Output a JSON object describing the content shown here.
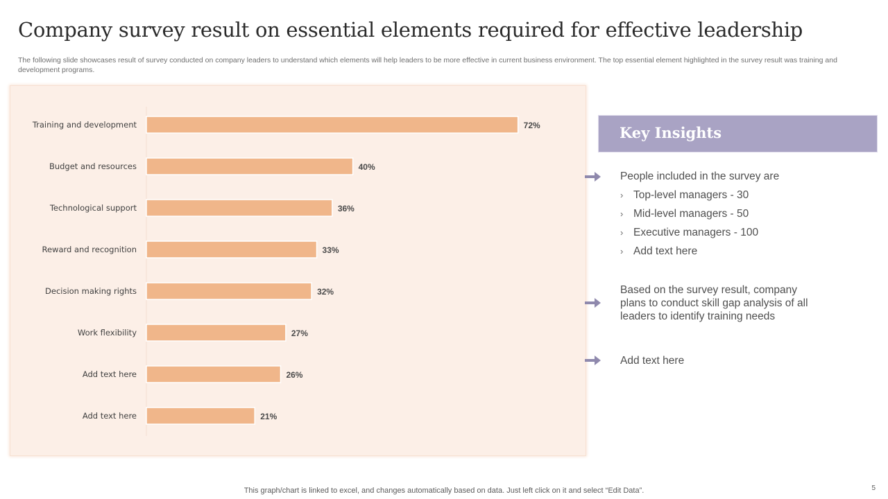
{
  "slide": {
    "title": "Company survey result on essential elements required for effective leadership",
    "subtitle": "The following slide showcases result of survey conducted on company leaders to understand which elements will help leaders to be more effective in current business environment. The top essential element highlighted in the survey result was training and development programs.",
    "footer_note": "This graph/chart is linked to excel,  and changes automatically based on data. Just left click on it and select “Edit Data”.",
    "page_number": "5"
  },
  "chart_data": {
    "type": "bar",
    "orientation": "horizontal",
    "categories": [
      "Training and development",
      "Budget and resources",
      "Technological support",
      "Reward and recognition",
      "Decision making rights",
      "Work flexibility",
      "Add text here",
      "Add text here"
    ],
    "values": [
      72,
      40,
      36,
      33,
      32,
      27,
      26,
      21
    ],
    "value_labels": [
      "72%",
      "40%",
      "36%",
      "33%",
      "32%",
      "27%",
      "26%",
      "21%"
    ],
    "unit": "%",
    "xlim": [
      0,
      100
    ],
    "grid": false,
    "legend": "none",
    "bar_color": "#f0b68a",
    "panel_color": "#fcefe7"
  },
  "insights": {
    "header": "Key Insights",
    "accent_color": "#a9a3c4",
    "arrow_icon": "right-arrow-icon",
    "point1_intro": "People included in the survey  are",
    "point1_bullets": [
      "Top-level managers - 30",
      "Mid-level managers - 50",
      "Executive  managers - 100",
      "Add text here"
    ],
    "point2": "Based on the survey  result,  company plans to conduct skill gap analysis of all leaders to identify training needs",
    "point3": "Add text here"
  }
}
